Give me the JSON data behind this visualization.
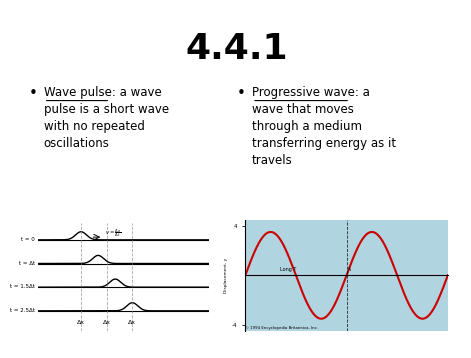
{
  "title": "4.4.1",
  "background_color": "#ffffff",
  "title_fontsize": 26,
  "title_color": "#000000",
  "bullet1_term": "Wave pulse",
  "bullet1_text": ": a wave\npulse is a short wave\nwith no repeated\noscillations",
  "bullet2_term": "Progressive wave",
  "bullet2_text": ": a\nwave that moves\nthrough a medium\ntransferring energy as it\ntravels",
  "wave_pulse_bg": "#f5f5f5",
  "progressive_wave_bg": "#b0d4e0",
  "pulse_line_color": "#000000",
  "progressive_line_color": "#cc0000",
  "bullet_fontsize": 8.5,
  "bullet_marker": "•",
  "pulse_labels": [
    "t = 0",
    "t = Δt",
    "t = 1.5Δt",
    "t = 2.5Δt"
  ],
  "pulse_centers": [
    2.5,
    3.5,
    4.5,
    5.5
  ],
  "pulse_offsets": [
    13,
    9.5,
    6,
    2.5
  ],
  "pulse_vlines": [
    2.5,
    4.0,
    5.5
  ],
  "pulse_xlabel": "Δx",
  "prog_wave_amplitude": 3.5,
  "prog_wave_color": "#cc0000",
  "prog_wave_bg": "#b0d4e0"
}
